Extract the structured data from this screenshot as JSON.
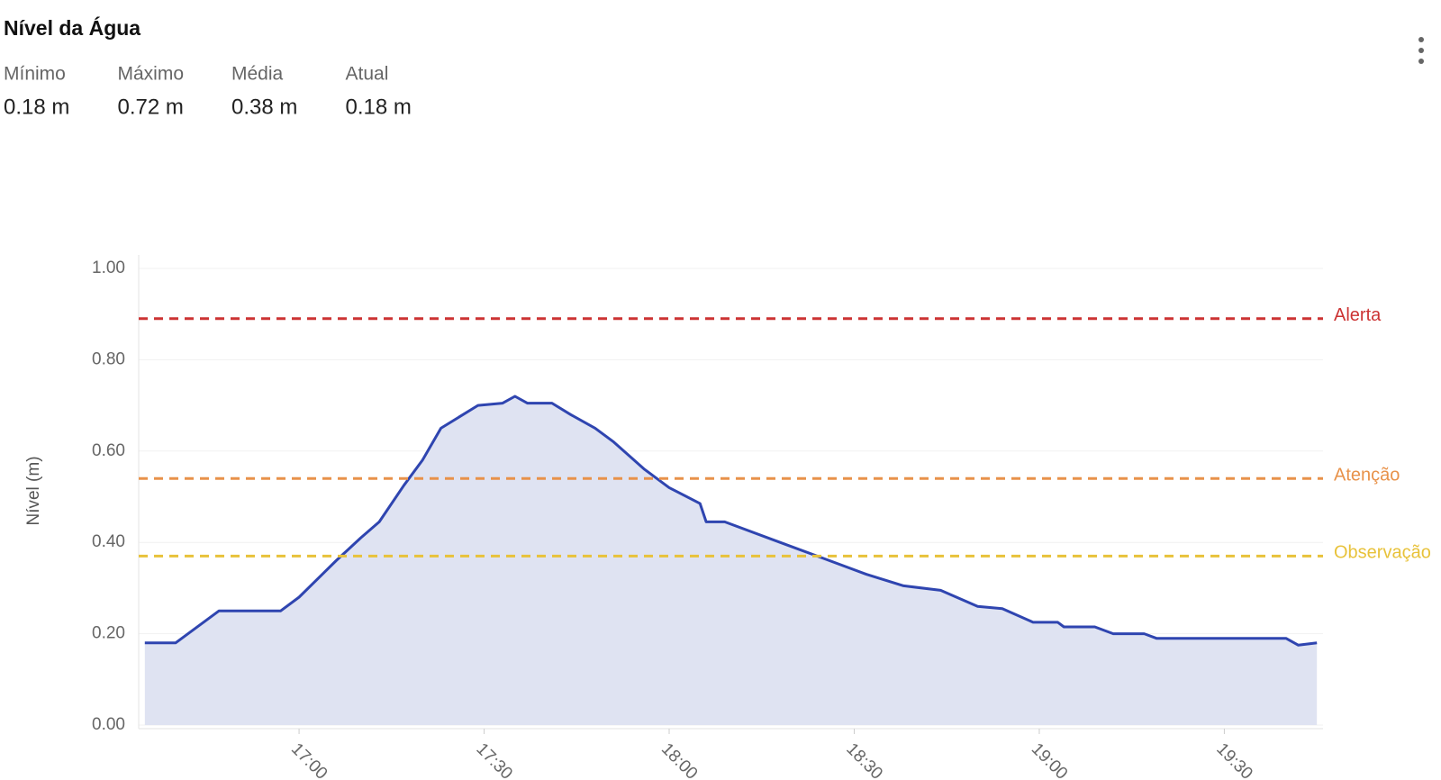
{
  "summary": [
    {
      "label": "Mínimo",
      "value": "0.18 m"
    },
    {
      "label": "Máximo",
      "value": "0.72 m"
    },
    {
      "label": "Média",
      "value": "0.38 m"
    },
    {
      "label": "Atual",
      "value": "0.18 m"
    }
  ],
  "chart_data": {
    "type": "area",
    "title": "Nível da Água",
    "y_label": "Nível (m)",
    "x": [
      "16:35",
      "16:40",
      "16:47",
      "16:57",
      "17:00",
      "17:06",
      "17:10",
      "17:13",
      "17:17",
      "17:20",
      "17:23",
      "17:29",
      "17:33",
      "17:35",
      "17:37",
      "17:41",
      "17:44",
      "17:48",
      "17:51",
      "17:56",
      "18:00",
      "18:05",
      "18:06",
      "18:09",
      "18:17",
      "18:24",
      "18:32",
      "18:38",
      "18:44",
      "18:50",
      "18:54",
      "18:59",
      "19:03",
      "19:04",
      "19:09",
      "19:12",
      "19:17",
      "19:19",
      "19:40",
      "19:42",
      "19:45"
    ],
    "series": [
      {
        "name": "Nível",
        "color": "#2f45b0",
        "fill": "#dfe3f2",
        "values": [
          0.18,
          0.18,
          0.25,
          0.25,
          0.28,
          0.36,
          0.41,
          0.445,
          0.525,
          0.58,
          0.65,
          0.7,
          0.705,
          0.72,
          0.705,
          0.705,
          0.68,
          0.65,
          0.62,
          0.56,
          0.52,
          0.485,
          0.445,
          0.445,
          0.405,
          0.37,
          0.33,
          0.305,
          0.295,
          0.26,
          0.255,
          0.225,
          0.225,
          0.215,
          0.215,
          0.2,
          0.2,
          0.19,
          0.19,
          0.175,
          0.18
        ]
      }
    ],
    "reference_lines": [
      {
        "label": "Alerta",
        "value": 0.89,
        "color": "#cc3333"
      },
      {
        "label": "Atenção",
        "value": 0.54,
        "color": "#e8924a"
      },
      {
        "label": "Observação",
        "value": 0.37,
        "color": "#e8c23a"
      }
    ],
    "xlim": [
      "16:34",
      "19:46"
    ],
    "xticks": [
      "17:00",
      "17:30",
      "18:00",
      "18:30",
      "19:00",
      "19:30"
    ],
    "ylim": [
      0,
      1
    ],
    "yticks": [
      {
        "value": 0,
        "label": "0.00"
      },
      {
        "value": 0.2,
        "label": "0.20"
      },
      {
        "value": 0.4,
        "label": "0.40"
      },
      {
        "value": 0.6,
        "label": "0.60"
      },
      {
        "value": 0.8,
        "label": "0.80"
      },
      {
        "value": 1,
        "label": "1.00"
      }
    ],
    "grid": true
  }
}
